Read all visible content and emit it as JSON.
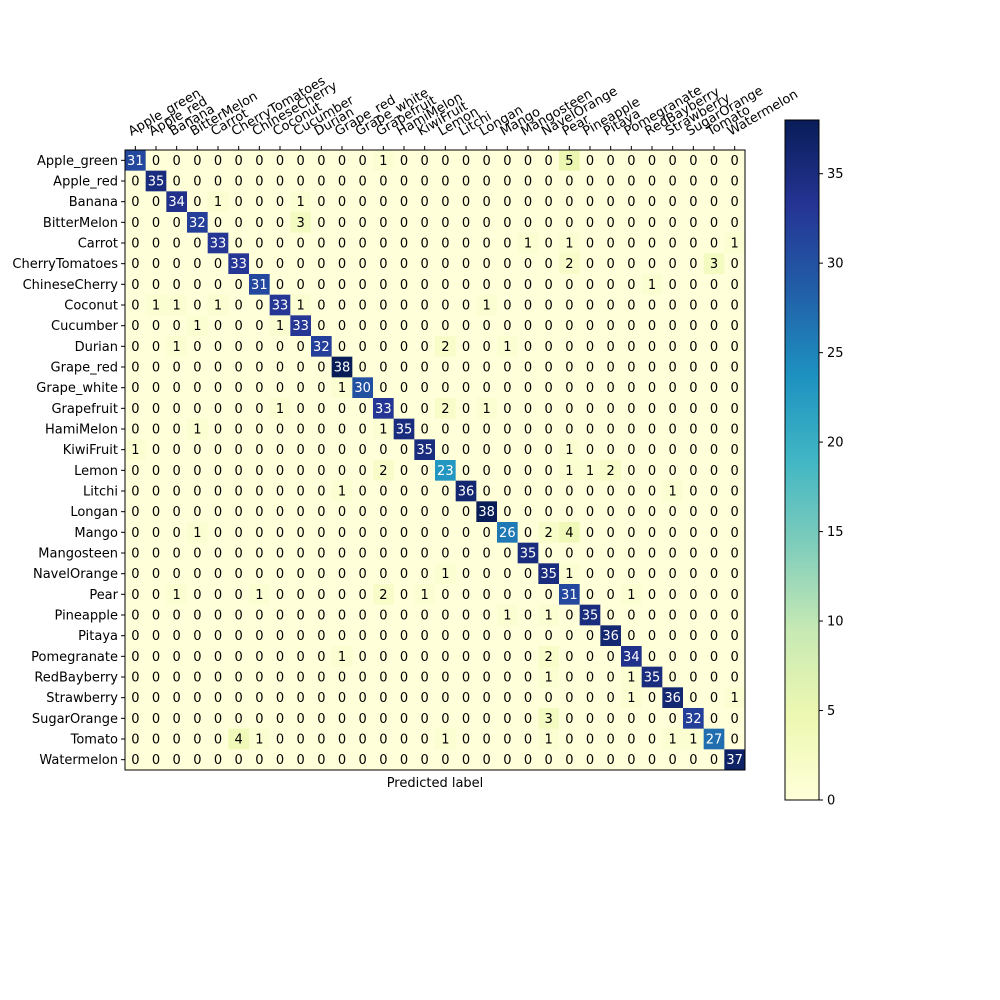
{
  "chart_data": {
    "type": "heatmap",
    "title": "",
    "xlabel": "Predicted label",
    "ylabel": "",
    "colormap": "YlGnBu",
    "colorbar": {
      "min": 0,
      "max": 38,
      "ticks": [
        0,
        5,
        10,
        15,
        20,
        25,
        30,
        35
      ]
    },
    "labels": [
      "Apple_green",
      "Apple_red",
      "Banana",
      "BitterMelon",
      "Carrot",
      "CherryTomatoes",
      "ChineseCherry",
      "Coconut",
      "Cucumber",
      "Durian",
      "Grape_red",
      "Grape_white",
      "Grapefruit",
      "HamiMelon",
      "KiwiFruit",
      "Lemon",
      "Litchi",
      "Longan",
      "Mango",
      "Mangosteen",
      "NavelOrange",
      "Pear",
      "Pineapple",
      "Pitaya",
      "Pomegranate",
      "RedBayberry",
      "Strawberry",
      "SugarOrange",
      "Tomato",
      "Watermelon"
    ],
    "matrix": [
      [
        31,
        0,
        0,
        0,
        0,
        0,
        0,
        0,
        0,
        0,
        0,
        0,
        1,
        0,
        0,
        0,
        0,
        0,
        0,
        0,
        0,
        5,
        0,
        0,
        0,
        0,
        0,
        0,
        0,
        0
      ],
      [
        0,
        35,
        0,
        0,
        0,
        0,
        0,
        0,
        0,
        0,
        0,
        0,
        0,
        0,
        0,
        0,
        0,
        0,
        0,
        0,
        0,
        0,
        0,
        0,
        0,
        0,
        0,
        0,
        0,
        0
      ],
      [
        0,
        0,
        34,
        0,
        1,
        0,
        0,
        0,
        1,
        0,
        0,
        0,
        0,
        0,
        0,
        0,
        0,
        0,
        0,
        0,
        0,
        0,
        0,
        0,
        0,
        0,
        0,
        0,
        0,
        0
      ],
      [
        0,
        0,
        0,
        32,
        0,
        0,
        0,
        0,
        3,
        0,
        0,
        0,
        0,
        0,
        0,
        0,
        0,
        0,
        0,
        0,
        0,
        0,
        0,
        0,
        0,
        0,
        0,
        0,
        0,
        0
      ],
      [
        0,
        0,
        0,
        0,
        33,
        0,
        0,
        0,
        0,
        0,
        0,
        0,
        0,
        0,
        0,
        0,
        0,
        0,
        0,
        1,
        0,
        1,
        0,
        0,
        0,
        0,
        0,
        0,
        0,
        1
      ],
      [
        0,
        0,
        0,
        0,
        0,
        33,
        0,
        0,
        0,
        0,
        0,
        0,
        0,
        0,
        0,
        0,
        0,
        0,
        0,
        0,
        0,
        2,
        0,
        0,
        0,
        0,
        0,
        0,
        3,
        0
      ],
      [
        0,
        0,
        0,
        0,
        0,
        0,
        31,
        0,
        0,
        0,
        0,
        0,
        0,
        0,
        0,
        0,
        0,
        0,
        0,
        0,
        0,
        0,
        0,
        0,
        0,
        1,
        0,
        0,
        0,
        0
      ],
      [
        0,
        1,
        1,
        0,
        1,
        0,
        0,
        33,
        1,
        0,
        0,
        0,
        0,
        0,
        0,
        0,
        0,
        1,
        0,
        0,
        0,
        0,
        0,
        0,
        0,
        0,
        0,
        0,
        0,
        0
      ],
      [
        0,
        0,
        0,
        1,
        0,
        0,
        0,
        1,
        33,
        0,
        0,
        0,
        0,
        0,
        0,
        0,
        0,
        0,
        0,
        0,
        0,
        0,
        0,
        0,
        0,
        0,
        0,
        0,
        0,
        0
      ],
      [
        0,
        0,
        1,
        0,
        0,
        0,
        0,
        0,
        0,
        32,
        0,
        0,
        0,
        0,
        0,
        2,
        0,
        0,
        1,
        0,
        0,
        0,
        0,
        0,
        0,
        0,
        0,
        0,
        0,
        0
      ],
      [
        0,
        0,
        0,
        0,
        0,
        0,
        0,
        0,
        0,
        0,
        38,
        0,
        0,
        0,
        0,
        0,
        0,
        0,
        0,
        0,
        0,
        0,
        0,
        0,
        0,
        0,
        0,
        0,
        0,
        0
      ],
      [
        0,
        0,
        0,
        0,
        0,
        0,
        0,
        0,
        0,
        0,
        1,
        30,
        0,
        0,
        0,
        0,
        0,
        0,
        0,
        0,
        0,
        0,
        0,
        0,
        0,
        0,
        0,
        0,
        0,
        0
      ],
      [
        0,
        0,
        0,
        0,
        0,
        0,
        0,
        1,
        0,
        0,
        0,
        0,
        33,
        0,
        0,
        2,
        0,
        1,
        0,
        0,
        0,
        0,
        0,
        0,
        0,
        0,
        0,
        0,
        0,
        0
      ],
      [
        0,
        0,
        0,
        1,
        0,
        0,
        0,
        0,
        0,
        0,
        0,
        0,
        1,
        35,
        0,
        0,
        0,
        0,
        0,
        0,
        0,
        0,
        0,
        0,
        0,
        0,
        0,
        0,
        0,
        0
      ],
      [
        1,
        0,
        0,
        0,
        0,
        0,
        0,
        0,
        0,
        0,
        0,
        0,
        0,
        0,
        35,
        0,
        0,
        0,
        0,
        0,
        0,
        1,
        0,
        0,
        0,
        0,
        0,
        0,
        0,
        0
      ],
      [
        0,
        0,
        0,
        0,
        0,
        0,
        0,
        0,
        0,
        0,
        0,
        0,
        2,
        0,
        0,
        23,
        0,
        0,
        0,
        0,
        0,
        1,
        1,
        2,
        0,
        0,
        0,
        0,
        0,
        0
      ],
      [
        0,
        0,
        0,
        0,
        0,
        0,
        0,
        0,
        0,
        0,
        1,
        0,
        0,
        0,
        0,
        0,
        36,
        0,
        0,
        0,
        0,
        0,
        0,
        0,
        0,
        0,
        1,
        0,
        0,
        0
      ],
      [
        0,
        0,
        0,
        0,
        0,
        0,
        0,
        0,
        0,
        0,
        0,
        0,
        0,
        0,
        0,
        0,
        0,
        38,
        0,
        0,
        0,
        0,
        0,
        0,
        0,
        0,
        0,
        0,
        0,
        0
      ],
      [
        0,
        0,
        0,
        1,
        0,
        0,
        0,
        0,
        0,
        0,
        0,
        0,
        0,
        0,
        0,
        0,
        0,
        0,
        26,
        0,
        2,
        4,
        0,
        0,
        0,
        0,
        0,
        0,
        0,
        0
      ],
      [
        0,
        0,
        0,
        0,
        0,
        0,
        0,
        0,
        0,
        0,
        0,
        0,
        0,
        0,
        0,
        0,
        0,
        0,
        0,
        35,
        0,
        0,
        0,
        0,
        0,
        0,
        0,
        0,
        0,
        0
      ],
      [
        0,
        0,
        0,
        0,
        0,
        0,
        0,
        0,
        0,
        0,
        0,
        0,
        0,
        0,
        0,
        1,
        0,
        0,
        0,
        0,
        35,
        1,
        0,
        0,
        0,
        0,
        0,
        0,
        0,
        0
      ],
      [
        0,
        0,
        1,
        0,
        0,
        0,
        1,
        0,
        0,
        0,
        0,
        0,
        2,
        0,
        1,
        0,
        0,
        0,
        0,
        0,
        0,
        31,
        0,
        0,
        1,
        0,
        0,
        0,
        0,
        0
      ],
      [
        0,
        0,
        0,
        0,
        0,
        0,
        0,
        0,
        0,
        0,
        0,
        0,
        0,
        0,
        0,
        0,
        0,
        0,
        1,
        0,
        1,
        0,
        35,
        0,
        0,
        0,
        0,
        0,
        0,
        0
      ],
      [
        0,
        0,
        0,
        0,
        0,
        0,
        0,
        0,
        0,
        0,
        0,
        0,
        0,
        0,
        0,
        0,
        0,
        0,
        0,
        0,
        0,
        0,
        0,
        36,
        0,
        0,
        0,
        0,
        0,
        0
      ],
      [
        0,
        0,
        0,
        0,
        0,
        0,
        0,
        0,
        0,
        0,
        1,
        0,
        0,
        0,
        0,
        0,
        0,
        0,
        0,
        0,
        2,
        0,
        0,
        0,
        34,
        0,
        0,
        0,
        0,
        0
      ],
      [
        0,
        0,
        0,
        0,
        0,
        0,
        0,
        0,
        0,
        0,
        0,
        0,
        0,
        0,
        0,
        0,
        0,
        0,
        0,
        0,
        1,
        0,
        0,
        0,
        1,
        35,
        0,
        0,
        0,
        0
      ],
      [
        0,
        0,
        0,
        0,
        0,
        0,
        0,
        0,
        0,
        0,
        0,
        0,
        0,
        0,
        0,
        0,
        0,
        0,
        0,
        0,
        0,
        0,
        0,
        0,
        1,
        0,
        36,
        0,
        0,
        1
      ],
      [
        0,
        0,
        0,
        0,
        0,
        0,
        0,
        0,
        0,
        0,
        0,
        0,
        0,
        0,
        0,
        0,
        0,
        0,
        0,
        0,
        3,
        0,
        0,
        0,
        0,
        0,
        0,
        32,
        0,
        0
      ],
      [
        0,
        0,
        0,
        0,
        0,
        4,
        1,
        0,
        0,
        0,
        0,
        0,
        0,
        0,
        0,
        1,
        0,
        0,
        0,
        0,
        1,
        0,
        0,
        0,
        0,
        0,
        1,
        1,
        27,
        0
      ],
      [
        0,
        0,
        0,
        0,
        0,
        0,
        0,
        0,
        0,
        0,
        0,
        0,
        0,
        0,
        0,
        0,
        0,
        0,
        0,
        0,
        0,
        0,
        0,
        0,
        0,
        0,
        0,
        0,
        0,
        37
      ]
    ]
  }
}
